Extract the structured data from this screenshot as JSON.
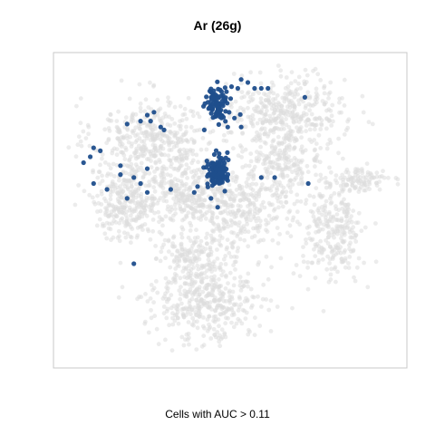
{
  "chart_data": {
    "type": "scatter",
    "title": "Ar (26g)",
    "caption": "Cells with AUC > 0.11",
    "xlabel": "",
    "ylabel": "",
    "axes_visible": false,
    "grid": false,
    "legend": "none",
    "xlim": [
      0,
      100
    ],
    "ylim": [
      0,
      100
    ],
    "colors": {
      "background_cells": "#dcdcdc",
      "highlighted_cells": "#1f4e8c",
      "frame": "#c8c8c8"
    },
    "background_clusters": [
      {
        "name": "",
        "cx": 27,
        "cy": 74,
        "sx": 9,
        "sy": 7,
        "n": 420
      },
      {
        "name": "",
        "cx": 18,
        "cy": 52,
        "sx": 5,
        "sy": 6,
        "n": 260
      },
      {
        "name": "",
        "cx": 36,
        "cy": 56,
        "sx": 7,
        "sy": 5,
        "n": 260
      },
      {
        "name": "",
        "cx": 66,
        "cy": 83,
        "sx": 9,
        "sy": 6,
        "n": 380
      },
      {
        "name": "",
        "cx": 65,
        "cy": 65,
        "sx": 6,
        "sy": 6,
        "n": 240
      },
      {
        "name": "",
        "cx": 51,
        "cy": 50,
        "sx": 8,
        "sy": 7,
        "n": 300
      },
      {
        "name": "",
        "cx": 80,
        "cy": 42,
        "sx": 5,
        "sy": 8,
        "n": 260
      },
      {
        "name": "",
        "cx": 88,
        "cy": 60,
        "sx": 5,
        "sy": 2,
        "n": 100
      },
      {
        "name": "",
        "cx": 43,
        "cy": 20,
        "sx": 8,
        "sy": 7,
        "n": 420
      },
      {
        "name": "",
        "cx": 38,
        "cy": 35,
        "sx": 5,
        "sy": 5,
        "n": 140
      }
    ],
    "highlighted_clusters": [
      {
        "name": "",
        "cx": 46,
        "cy": 86,
        "sx": 1.8,
        "sy": 2.8,
        "n": 90
      },
      {
        "name": "",
        "cx": 46,
        "cy": 63,
        "sx": 1.5,
        "sy": 2.8,
        "n": 110
      }
    ],
    "highlighted_points": [
      {
        "x": 53,
        "y": 94
      },
      {
        "x": 55,
        "y": 93
      },
      {
        "x": 59,
        "y": 91
      },
      {
        "x": 57,
        "y": 91
      },
      {
        "x": 61,
        "y": 91
      },
      {
        "x": 52,
        "y": 91
      },
      {
        "x": 72,
        "y": 88
      },
      {
        "x": 51,
        "y": 81
      },
      {
        "x": 26,
        "y": 80
      },
      {
        "x": 25,
        "y": 82
      },
      {
        "x": 23,
        "y": 80
      },
      {
        "x": 19,
        "y": 79
      },
      {
        "x": 29,
        "y": 78
      },
      {
        "x": 27,
        "y": 83
      },
      {
        "x": 30,
        "y": 77
      },
      {
        "x": 9,
        "y": 71
      },
      {
        "x": 11,
        "y": 70
      },
      {
        "x": 6,
        "y": 66
      },
      {
        "x": 8,
        "y": 68
      },
      {
        "x": 17,
        "y": 65
      },
      {
        "x": 25,
        "y": 64
      },
      {
        "x": 17,
        "y": 62
      },
      {
        "x": 21,
        "y": 61
      },
      {
        "x": 23,
        "y": 59
      },
      {
        "x": 9,
        "y": 59
      },
      {
        "x": 13,
        "y": 57
      },
      {
        "x": 19,
        "y": 54
      },
      {
        "x": 25,
        "y": 56
      },
      {
        "x": 32,
        "y": 57
      },
      {
        "x": 40,
        "y": 58
      },
      {
        "x": 39,
        "y": 56
      },
      {
        "x": 44,
        "y": 54
      },
      {
        "x": 46,
        "y": 51
      },
      {
        "x": 49,
        "y": 60
      },
      {
        "x": 59,
        "y": 61
      },
      {
        "x": 63,
        "y": 61
      },
      {
        "x": 73,
        "y": 59
      },
      {
        "x": 53,
        "y": 78
      },
      {
        "x": 49,
        "y": 78
      },
      {
        "x": 42,
        "y": 77
      },
      {
        "x": 21,
        "y": 32
      }
    ]
  }
}
